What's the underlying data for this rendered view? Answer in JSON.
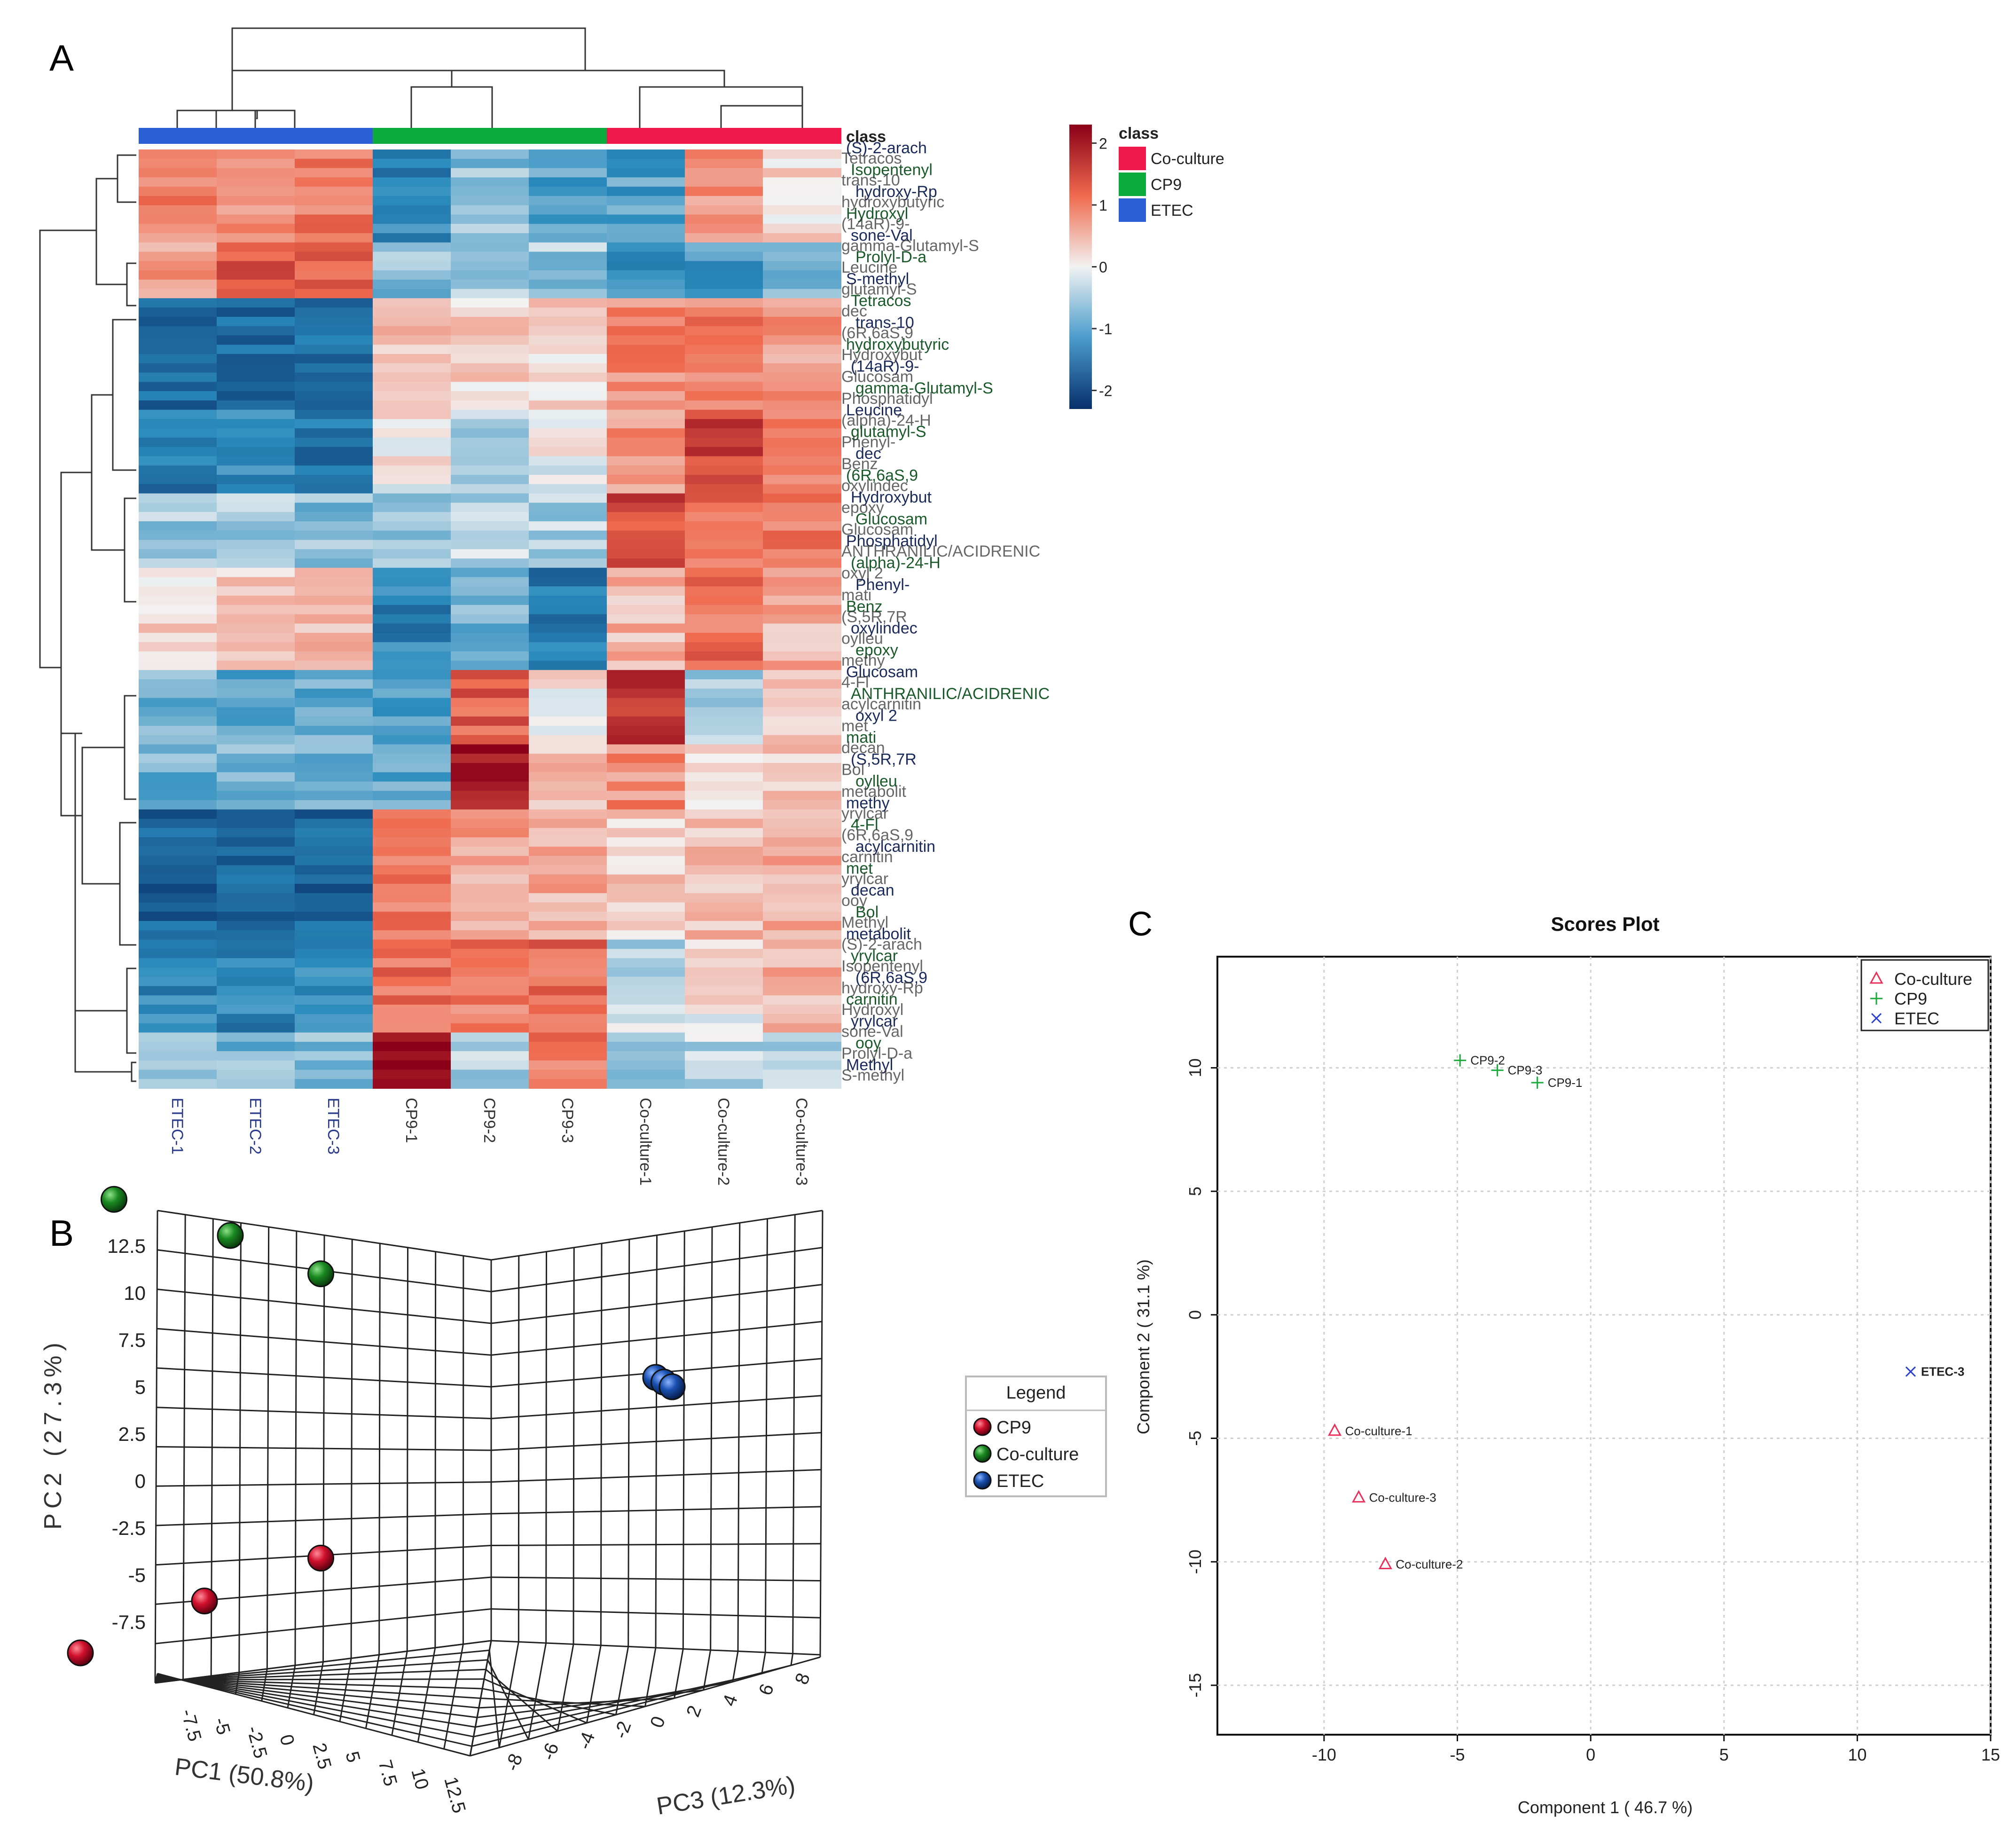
{
  "panel_labels": {
    "a": "A",
    "b": "B",
    "c": "C"
  },
  "colors": {
    "coculture": "#f0184a",
    "cp9": "#0aab3c",
    "etec": "#2c5ed6",
    "heat_low": "#08306b",
    "heat_mid": "#f2f2f2",
    "heat_high": "#8b0018",
    "sphere_red": "#d0102c",
    "sphere_green": "#1a8a22",
    "sphere_blue": "#1a50b0",
    "pls_coculture": "#e8305a",
    "pls_cp9": "#1aaa3a",
    "pls_etec": "#2a40d0"
  },
  "chart_data": [
    {
      "type": "heatmap",
      "panel": "A",
      "class_header": "class",
      "legend_title": "class",
      "legend_entries": [
        "Co-culture",
        "CP9",
        "ETEC"
      ],
      "color_scale": {
        "ticks": [
          2,
          1,
          0,
          -1,
          -2
        ]
      },
      "columns": [
        "ETEC-1",
        "ETEC-2",
        "ETEC-3",
        "CP9-1",
        "CP9-2",
        "CP9-3",
        "Co-culture-1",
        "Co-culture-2",
        "Co-culture-3"
      ],
      "column_classes": [
        "ETEC",
        "ETEC",
        "ETEC",
        "CP9",
        "CP9",
        "CP9",
        "Co-culture",
        "Co-culture",
        "Co-culture"
      ],
      "row_groups": [
        {
          "rows": 10,
          "values": [
            1.0,
            0.9,
            1.1,
            -1.3,
            -0.6,
            -1.0,
            -1.0,
            0.8,
            0.2
          ]
        },
        {
          "rows": 6,
          "values": [
            0.8,
            1.4,
            1.3,
            -0.6,
            -0.4,
            -0.5,
            -1.1,
            -1.0,
            -0.8
          ]
        },
        {
          "rows": 12,
          "values": [
            -1.6,
            -1.6,
            -1.6,
            0.5,
            0.3,
            0.3,
            0.9,
            1.0,
            0.8
          ]
        },
        {
          "rows": 9,
          "values": [
            -1.4,
            -1.3,
            -1.5,
            0.1,
            -0.4,
            0.0,
            0.8,
            1.6,
            1.1
          ]
        },
        {
          "rows": 8,
          "values": [
            -0.5,
            -0.5,
            -0.6,
            -0.5,
            -0.3,
            -0.4,
            1.5,
            1.2,
            1.1
          ]
        },
        {
          "rows": 11,
          "values": [
            0.3,
            0.4,
            0.6,
            -1.3,
            -0.8,
            -1.4,
            0.5,
            1.2,
            0.6
          ]
        },
        {
          "rows": 8,
          "values": [
            -0.8,
            -0.8,
            -0.8,
            -1.0,
            1.3,
            0.1,
            1.8,
            -0.5,
            0.4
          ]
        },
        {
          "rows": 7,
          "values": [
            -0.8,
            -0.7,
            -0.7,
            -0.9,
            2.0,
            0.5,
            0.9,
            0.3,
            0.3
          ]
        },
        {
          "rows": 14,
          "values": [
            -1.7,
            -1.7,
            -1.7,
            1.0,
            0.7,
            0.6,
            0.3,
            0.5,
            0.6
          ]
        },
        {
          "rows": 10,
          "values": [
            -1.3,
            -1.3,
            -1.3,
            1.2,
            1.1,
            1.2,
            -0.3,
            0.1,
            0.6
          ]
        },
        {
          "rows": 6,
          "values": [
            -0.7,
            -0.7,
            -0.6,
            2.2,
            -0.4,
            1.0,
            -0.4,
            -0.3,
            -0.4
          ]
        }
      ],
      "row_labels": [
        "(S)-2-arach",
        "Isopentenyl",
        "hydroxy-Rp",
        "Hydroxyl",
        "sone-Val",
        "Prolyl-D-a",
        "S-methyl",
        "Tetracos",
        "trans-10",
        "hydroxybutyric",
        "(14aR)-9-",
        "gamma-Glutamyl-S",
        "Leucine",
        "glutamyl-S",
        "dec",
        "(6R,6aS,9",
        "Hydroxybut",
        "Glucosam",
        "Phosphatidyl",
        "(alpha)-24-H",
        "Phenyl-",
        "Benz",
        "oxylindec",
        "epoxy",
        "Glucosam",
        "ANTHRANILIC/ACIDRENIC",
        "oxyl 2",
        "mati",
        "(S,5R,7R",
        "oylleu",
        "methy",
        "4-Fl",
        "acylcarnitin",
        "met",
        "decan",
        "Bol",
        "metabolit",
        "yrylcar",
        "(6R,6aS,9",
        "carnitin",
        "yrylcar",
        "ooy",
        "Methyl"
      ]
    },
    {
      "type": "scatter",
      "panel": "B",
      "projection": "3d",
      "axis_labels": {
        "x": "PC1 (50.8%)",
        "y": "PC2 (27.3%)",
        "z": "PC3 (12.3%)"
      },
      "x_ticks": [
        "-7.5",
        "-5",
        "-2.5",
        "0",
        "2.5",
        "5",
        "7.5",
        "10",
        "12.5"
      ],
      "y_ticks": [
        "12.5",
        "10",
        "7.5",
        "5",
        "2.5",
        "0",
        "-2.5",
        "-5",
        "-7.5"
      ],
      "z_ticks": [
        "-8",
        "-6",
        "-4",
        "-2",
        "0",
        "2",
        "4",
        "6",
        "8"
      ],
      "legend_title": "Legend",
      "legend_entries": [
        "CP9",
        "Co-culture",
        "ETEC"
      ],
      "series": [
        {
          "name": "CP9",
          "points": [
            [
              -7.8,
              -9.5,
              0
            ],
            [
              -3.0,
              -7.2,
              0
            ],
            [
              1.5,
              -5.3,
              0
            ]
          ]
        },
        {
          "name": "Co-culture",
          "points": [
            [
              -6.5,
              10.6,
              0
            ],
            [
              -2.0,
              9.0,
              0
            ],
            [
              1.5,
              7.3,
              0
            ]
          ]
        },
        {
          "name": "ETEC",
          "points": [
            [
              0,
              -2.0,
              -1.3
            ],
            [
              0,
              -2.1,
              -0.8
            ],
            [
              0,
              -2.2,
              -0.3
            ]
          ]
        }
      ]
    },
    {
      "type": "scatter",
      "panel": "C",
      "title": "Scores Plot",
      "xlabel": "Component 1 ( 46.7 %)",
      "ylabel": "Component 2 ( 31.1 %)",
      "xlim": [
        -14,
        15
      ],
      "ylim": [
        -17,
        14.5
      ],
      "xticks": [
        -10,
        -5,
        0,
        5,
        10,
        15
      ],
      "yticks": [
        10,
        5,
        0,
        -5,
        -10,
        -15
      ],
      "grid": true,
      "legend_position": "top-right",
      "legend_entries": [
        "Co-culture",
        "CP9",
        "ETEC"
      ],
      "series": [
        {
          "name": "Co-culture",
          "points": [
            {
              "label": "Co-culture-1",
              "x": -9.6,
              "y": -4.7
            },
            {
              "label": "Co-culture-3",
              "x": -8.7,
              "y": -7.4
            },
            {
              "label": "Co-culture-2",
              "x": -7.7,
              "y": -10.1
            }
          ]
        },
        {
          "name": "CP9",
          "points": [
            {
              "label": "CP9-2",
              "x": -4.9,
              "y": 10.3
            },
            {
              "label": "CP9-3",
              "x": -3.5,
              "y": 9.9
            },
            {
              "label": "CP9-1",
              "x": -2.0,
              "y": 9.4
            }
          ]
        },
        {
          "name": "ETEC",
          "points": [
            {
              "label": "ETEC-3",
              "x": 12.0,
              "y": -2.3
            }
          ]
        }
      ]
    }
  ]
}
